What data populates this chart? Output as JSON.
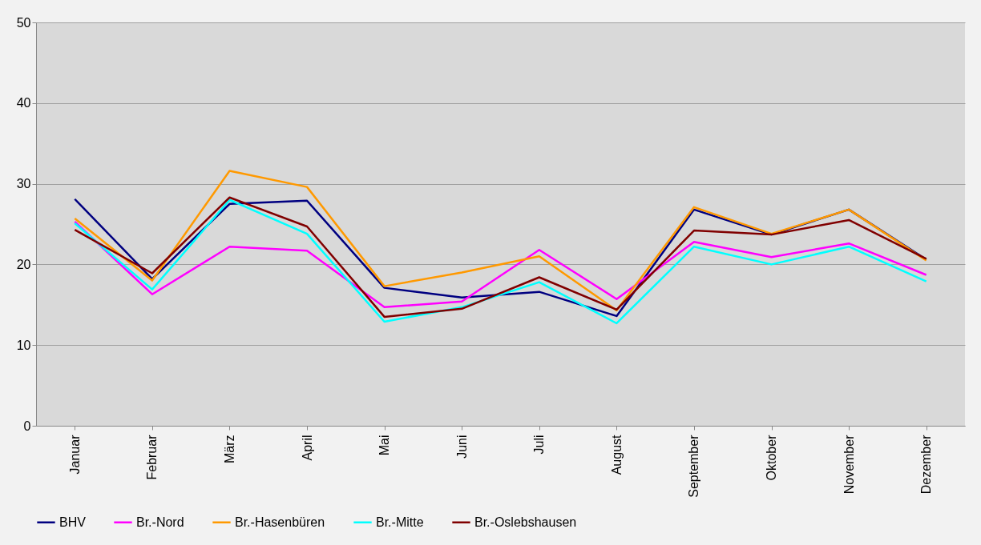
{
  "chart_data": {
    "type": "line",
    "categories": [
      "Januar",
      "Februar",
      "März",
      "April",
      "Mai",
      "Juni",
      "Juli",
      "August",
      "September",
      "Oktober",
      "November",
      "Dezember"
    ],
    "series": [
      {
        "name": "BHV",
        "color": "#000080",
        "values": [
          28.1,
          18.2,
          27.5,
          27.9,
          17.1,
          15.9,
          16.6,
          13.6,
          26.8,
          23.7,
          26.8,
          20.6
        ]
      },
      {
        "name": "Br.-Nord",
        "color": "#ff00ff",
        "values": [
          25.3,
          16.3,
          22.2,
          21.7,
          14.7,
          15.4,
          21.8,
          15.7,
          22.8,
          20.9,
          22.6,
          18.7
        ]
      },
      {
        "name": "Br.-Hasenbüren",
        "color": "#ff9900",
        "values": [
          25.7,
          18.0,
          31.6,
          29.6,
          17.3,
          19.0,
          21.0,
          14.3,
          27.1,
          23.8,
          26.8,
          20.5
        ]
      },
      {
        "name": "Br.-Mitte",
        "color": "#00ffff",
        "values": [
          25.1,
          16.9,
          28.0,
          23.8,
          12.9,
          14.7,
          17.8,
          12.7,
          22.2,
          20.0,
          22.2,
          17.9
        ]
      },
      {
        "name": "Br.-Oslebshausen",
        "color": "#800000",
        "values": [
          24.3,
          18.9,
          28.3,
          24.7,
          13.5,
          14.5,
          18.4,
          14.4,
          24.2,
          23.7,
          25.5,
          20.7
        ]
      }
    ],
    "ylim": [
      0,
      50
    ],
    "yticks": [
      0,
      10,
      20,
      30,
      40,
      50
    ],
    "grid": "y",
    "legend": "bottom",
    "marker": "none",
    "line_style": "solid"
  }
}
